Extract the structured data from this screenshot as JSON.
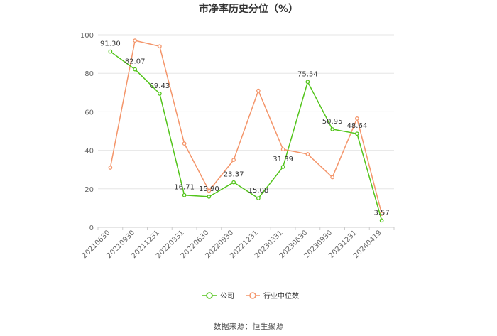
{
  "chart_data": {
    "type": "line",
    "title": "市净率历史分位（%）",
    "x": [
      "20210630",
      "20210930",
      "20211231",
      "20220331",
      "20220630",
      "20220930",
      "20221231",
      "20230331",
      "20230630",
      "20230930",
      "20231231",
      "20240419"
    ],
    "series": [
      {
        "name": "公司",
        "color": "#52c41a",
        "values": [
          91.3,
          82.07,
          69.43,
          16.71,
          15.9,
          23.37,
          15.08,
          31.39,
          75.54,
          50.95,
          48.64,
          3.57
        ],
        "labels": [
          "91.30",
          "82.07",
          "69.43",
          "16.71",
          "15.90",
          "23.37",
          "15.08",
          "31.39",
          "75.54",
          "50.95",
          "48.64",
          "3.57"
        ]
      },
      {
        "name": "行业中位数",
        "color": "#f4956a",
        "values": [
          31,
          97,
          94,
          43.5,
          19,
          35,
          71,
          40.5,
          38,
          26,
          56.5,
          7
        ]
      }
    ],
    "ylim": [
      0,
      100
    ],
    "yticks": [
      0,
      20,
      40,
      60,
      80,
      100
    ],
    "grid": true,
    "legend": "bottom-center"
  },
  "footer": {
    "source": "数据来源：恒生聚源"
  }
}
